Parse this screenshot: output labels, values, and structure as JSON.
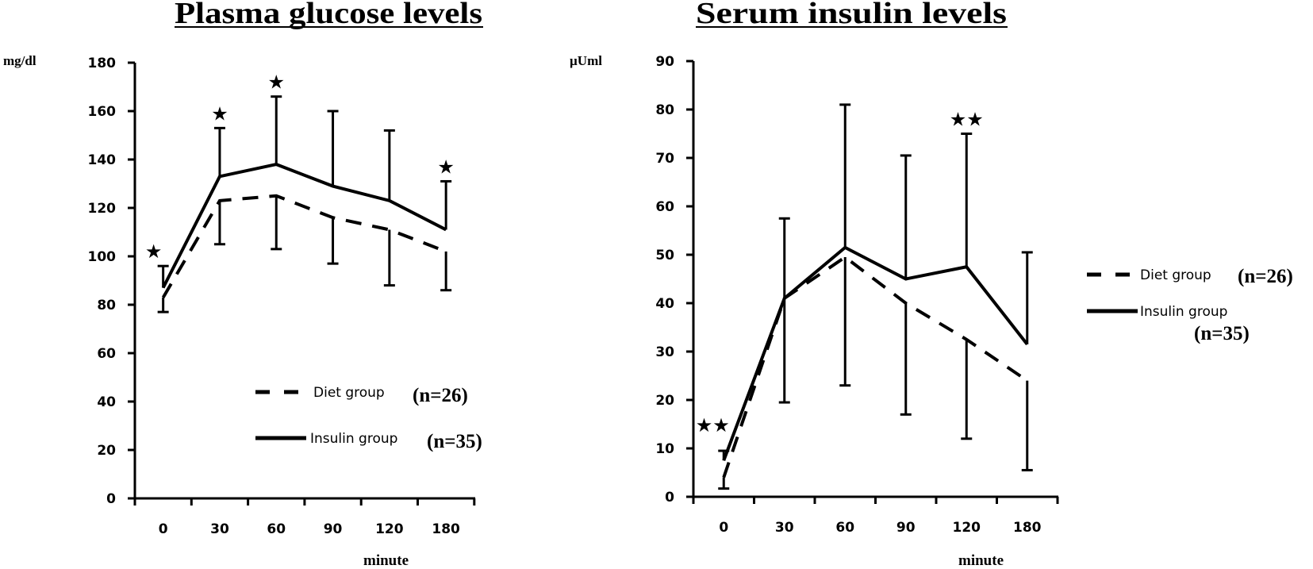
{
  "chart_data": [
    {
      "type": "line",
      "title": "Plasma glucose levels",
      "ylabel": "mg/dl",
      "xlabel": "minute",
      "categories": [
        "0",
        "30",
        "60",
        "90",
        "120",
        "180"
      ],
      "yticks": [
        "0",
        "20",
        "40",
        "60",
        "80",
        "100",
        "120",
        "140",
        "160",
        "180"
      ],
      "ylim": [
        0,
        180
      ],
      "grid": false,
      "legend_position": "bottom-right",
      "series": [
        {
          "name": "Diet group",
          "n_label": "(n=26)",
          "style": "dashed",
          "values": [
            83,
            123,
            125,
            116,
            111,
            102
          ],
          "error_lower": [
            77,
            105,
            103,
            97,
            88,
            86
          ]
        },
        {
          "name": "Insulin group",
          "n_label": "(n=35)",
          "style": "solid",
          "values": [
            87,
            133,
            138,
            129,
            123,
            111
          ],
          "error_upper": [
            96,
            153,
            166,
            160,
            152,
            131
          ]
        }
      ],
      "significance": [
        {
          "category": "0",
          "mark": "★"
        },
        {
          "category": "30",
          "mark": "★"
        },
        {
          "category": "60",
          "mark": "★"
        },
        {
          "category": "180",
          "mark": "★"
        }
      ]
    },
    {
      "type": "line",
      "title": "Serum insulin levels",
      "ylabel": "µUml",
      "xlabel": "minute",
      "categories": [
        "0",
        "30",
        "60",
        "90",
        "120",
        "180"
      ],
      "yticks": [
        "0",
        "10",
        "20",
        "30",
        "40",
        "50",
        "60",
        "70",
        "80",
        "90"
      ],
      "ylim": [
        0,
        90
      ],
      "grid": false,
      "legend_position": "right",
      "series": [
        {
          "name": "Diet group",
          "n_label": "(n=26)",
          "style": "dashed",
          "values": [
            4,
            41,
            49.5,
            40,
            32.5,
            24
          ],
          "error_lower": [
            1.7,
            19.5,
            23,
            17,
            12,
            5.5
          ]
        },
        {
          "name": "Insulin group",
          "n_label": "(n=35)",
          "style": "solid",
          "values": [
            7.5,
            41,
            51.5,
            45,
            47.5,
            31.5
          ],
          "error_upper": [
            9.5,
            57.5,
            81,
            70.5,
            75,
            50.5
          ]
        }
      ],
      "significance": [
        {
          "category": "0",
          "mark": "★★"
        },
        {
          "category": "120",
          "mark": "★★"
        }
      ]
    }
  ]
}
